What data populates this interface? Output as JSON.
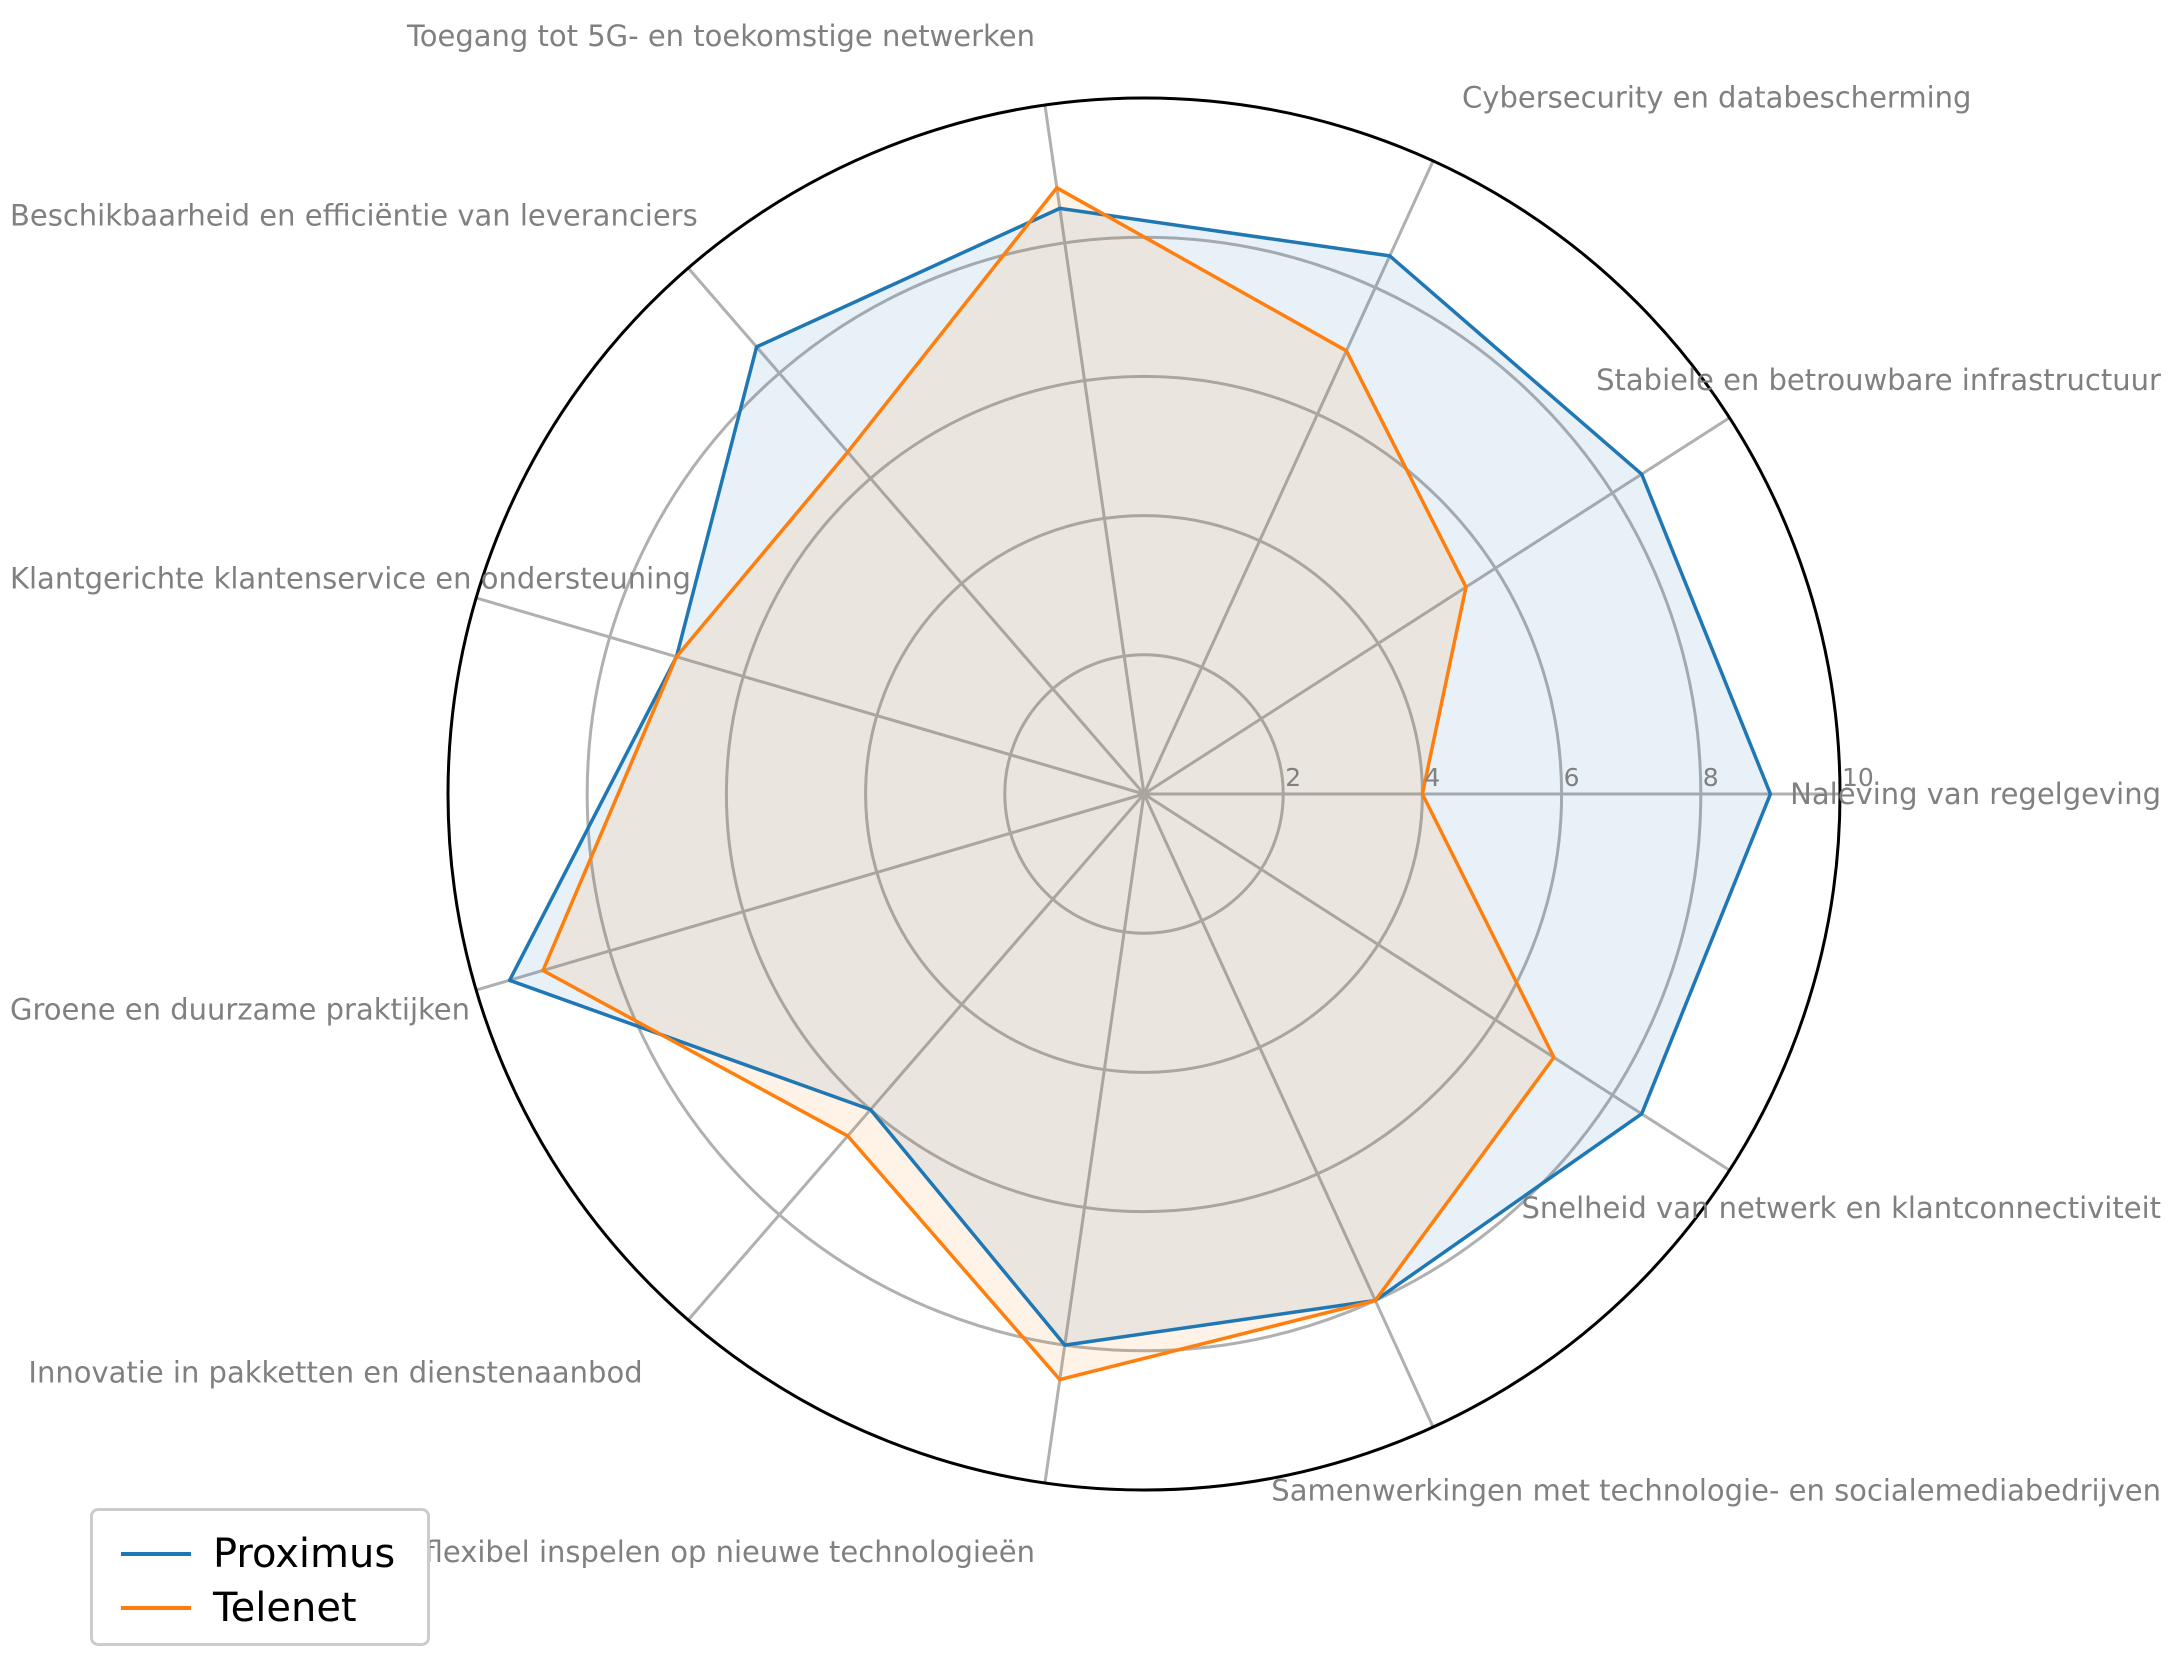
{
  "chart_data": {
    "type": "radar",
    "title": "",
    "categories": [
      "Naleving van regelgeving",
      "Stabiele en betrouwbare infrastructuur",
      "Cybersecurity en databescherming",
      "Toegang tot 5G- en toekomstige netwerken",
      "Beschikbaarheid en efficiëntie van leveranciers",
      "Klantgerichte klantenservice en ondersteuning",
      "Groene en duurzame praktijken",
      "Innovatie in pakketten en dienstenaanbod",
      "Snel en flexibel inspelen op nieuwe technologieën",
      "Samenwerkingen met technologie- en socialemediabedrijven",
      "Snelheid van netwerk en klantconnectiviteit"
    ],
    "radial_ticks": [
      2,
      4,
      6,
      8,
      10
    ],
    "rlim": [
      0,
      10
    ],
    "grid": true,
    "legend_position": "bottom-left",
    "series": [
      {
        "name": "Proximus",
        "color": "#1f77b4",
        "values": [
          9.0,
          8.5,
          8.5,
          8.5,
          8.5,
          7.0,
          9.5,
          6.0,
          8.0,
          8.0,
          8.5
        ]
      },
      {
        "name": "Telenet",
        "color": "#ff7f0e",
        "values": [
          4.0,
          5.5,
          7.0,
          8.8,
          6.5,
          7.0,
          9.0,
          6.5,
          8.5,
          8.0,
          7.0
        ]
      }
    ]
  }
}
